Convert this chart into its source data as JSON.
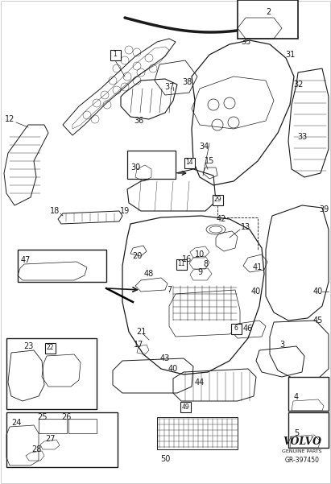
{
  "bg_color": "#ffffff",
  "line_color": "#1a1a1a",
  "fig_width": 4.11,
  "fig_height": 6.01,
  "dpi": 100,
  "volvo_text": "VOLVO",
  "genuine_parts": "GENUINE PARTS",
  "diagram_id": "GR-397450",
  "lw_main": 0.8,
  "lw_thin": 0.4,
  "lw_thick": 1.5,
  "fs_label": 6.5,
  "fs_volvo": 9,
  "fs_small": 5
}
